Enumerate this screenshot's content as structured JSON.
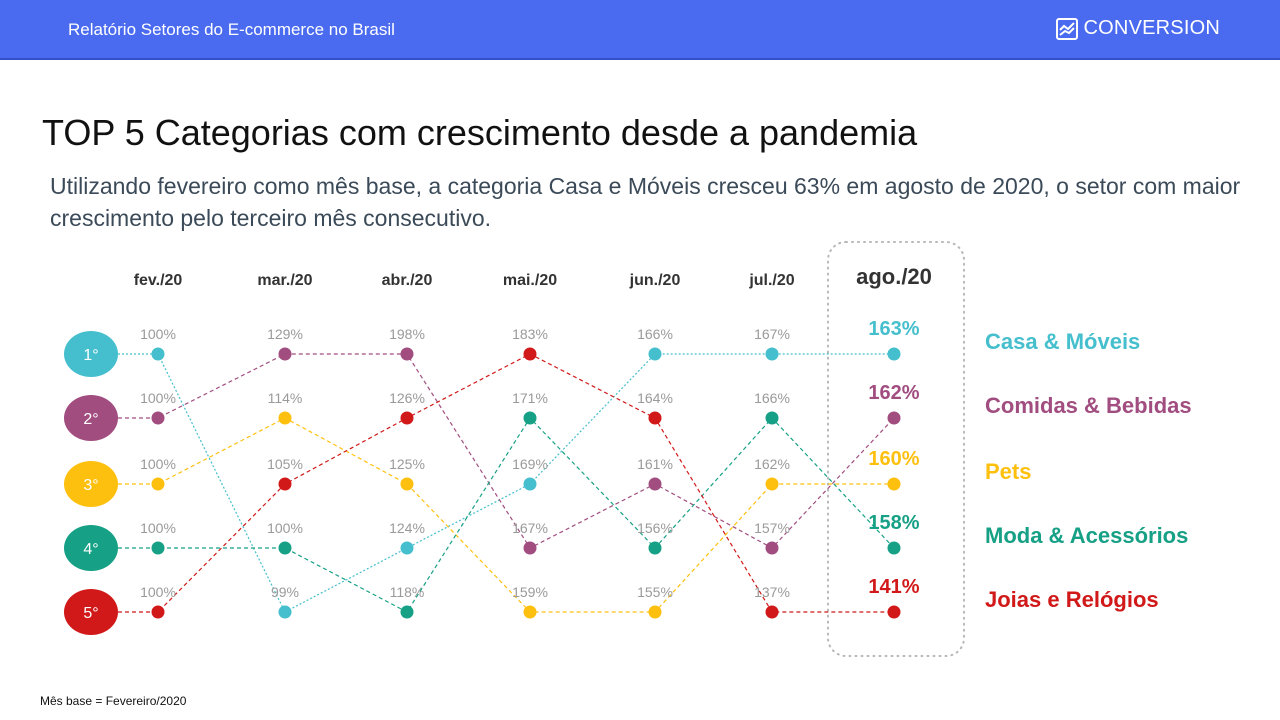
{
  "header": {
    "report_title": "Relatório Setores do E-commerce no Brasil",
    "brand": "CONVERSION",
    "brand_icon": "trend-chart-icon"
  },
  "title": "TOP 5 Categorias com crescimento desde a pandemia",
  "subtitle": "Utilizando fevereiro como mês base, a categoria Casa e Móveis cresceu 63% em agosto de 2020, o setor com maior crescimento pelo terceiro mês consecutivo.",
  "footnote": "Mês base = Fevereiro/2020",
  "chart_data": {
    "type": "table",
    "months": [
      "fev./20",
      "mar./20",
      "abr./20",
      "mai./20",
      "jun./20",
      "jul./20",
      "ago./20"
    ],
    "highlight_month": "ago./20",
    "rank_labels": [
      "1°",
      "2°",
      "3°",
      "4°",
      "5°"
    ],
    "rank_colors": [
      "#45bfcd",
      "#a14d80",
      "#fec00f",
      "#16a085",
      "#d11919"
    ],
    "series": [
      {
        "name": "Casa & Móveis",
        "color": "#45bfcd",
        "values": [
          100,
          99,
          124,
          169,
          166,
          167,
          163
        ],
        "ranks": [
          1,
          5,
          4,
          3,
          1,
          1,
          1
        ]
      },
      {
        "name": "Comidas & Bebidas",
        "color": "#a14d80",
        "values": [
          100,
          129,
          198,
          167,
          161,
          157,
          162
        ],
        "ranks": [
          2,
          1,
          1,
          4,
          3,
          4,
          2
        ]
      },
      {
        "name": "Pets",
        "color": "#fec00f",
        "values": [
          100,
          114,
          125,
          159,
          155,
          162,
          160
        ],
        "ranks": [
          3,
          2,
          3,
          5,
          5,
          3,
          3
        ]
      },
      {
        "name": "Moda & Acessórios",
        "color": "#16a085",
        "values": [
          100,
          100,
          118,
          171,
          156,
          166,
          158
        ],
        "ranks": [
          4,
          4,
          5,
          2,
          4,
          2,
          4
        ]
      },
      {
        "name": "Joias e Relógios",
        "color": "#d11919",
        "values": [
          100,
          105,
          126,
          183,
          164,
          137,
          141
        ],
        "ranks": [
          5,
          3,
          2,
          1,
          2,
          5,
          5
        ]
      }
    ],
    "value_suffix": "%"
  }
}
